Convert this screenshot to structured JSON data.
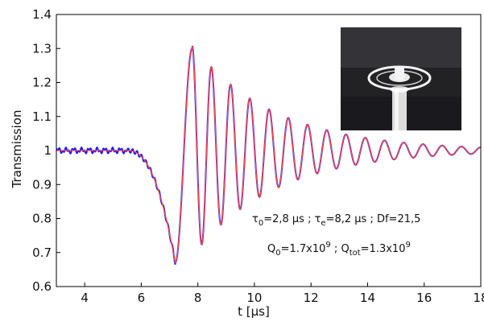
{
  "chart_data": {
    "type": "line",
    "xlabel": "t [µs]",
    "ylabel": "Transmission",
    "xlim": [
      3,
      18
    ],
    "ylim": [
      0.6,
      1.4
    ],
    "x_ticks": [
      4,
      6,
      8,
      10,
      12,
      14,
      16,
      18
    ],
    "y_ticks": [
      0.6,
      0.7,
      0.8,
      0.9,
      1,
      1.1,
      1.2,
      1.3,
      1.4
    ],
    "y_tick_labels": [
      "0.6",
      "0.7",
      "0.8",
      "0.9",
      "1",
      "1.1",
      "1.2",
      "1.3",
      "1.4"
    ],
    "grid": false,
    "legend": false,
    "series": [
      {
        "role": "measured",
        "color": "#1a1aff",
        "x": [
          3.0,
          3.5,
          4.0,
          4.5,
          5.0,
          5.2,
          5.4,
          5.6,
          5.8,
          6.0,
          6.2,
          6.3,
          6.4,
          6.6,
          6.8,
          7.0,
          7.1,
          7.2,
          7.3,
          7.4,
          7.5,
          7.6,
          7.7,
          7.8,
          7.9,
          8.1,
          8.2,
          8.3,
          8.5,
          8.9,
          9.2,
          9.6,
          10.0,
          11.0,
          12.0,
          13.0,
          14.0,
          15.0,
          16.0,
          17.0,
          18.0
        ],
        "y": [
          1.0,
          1.005,
          1.0,
          1.005,
          1.0,
          1.005,
          1.01,
          0.995,
          0.98,
          0.955,
          0.93,
          0.91,
          0.88,
          0.84,
          0.79,
          0.72,
          0.68,
          0.67,
          0.7,
          0.8,
          0.95,
          1.1,
          1.24,
          1.3,
          1.25,
          1.0,
          0.86,
          0.79,
          1.2,
          1.17,
          0.84,
          1.13,
          0.88,
          1.09,
          0.93,
          1.05,
          0.97,
          1.02,
          0.99,
          1.01,
          1.0
        ]
      },
      {
        "role": "fit",
        "color": "#ff4a3c",
        "x": [
          3.0,
          4.0,
          5.0,
          5.5,
          6.0,
          6.5,
          7.0,
          7.2,
          7.4,
          7.6,
          7.8,
          8.0,
          8.2,
          8.5,
          9.0,
          10.0,
          12.0,
          14.0,
          16.0,
          18.0
        ],
        "y": [
          1.0,
          1.0,
          0.995,
          0.99,
          0.97,
          0.88,
          0.72,
          0.67,
          0.8,
          1.1,
          1.31,
          1.1,
          0.79,
          1.21,
          0.84,
          0.88,
          0.93,
          0.97,
          0.99,
          1.0
        ]
      }
    ],
    "annotations": {
      "line1": "τ0=2,8 µs ; τe=8,2 µs ; Df=21,5",
      "line2": "Q0=1.7x10^9 ; Qtot=1.3x10^9"
    },
    "inset_image": "photo of a glass disk resonator on a cylindrical stem"
  }
}
